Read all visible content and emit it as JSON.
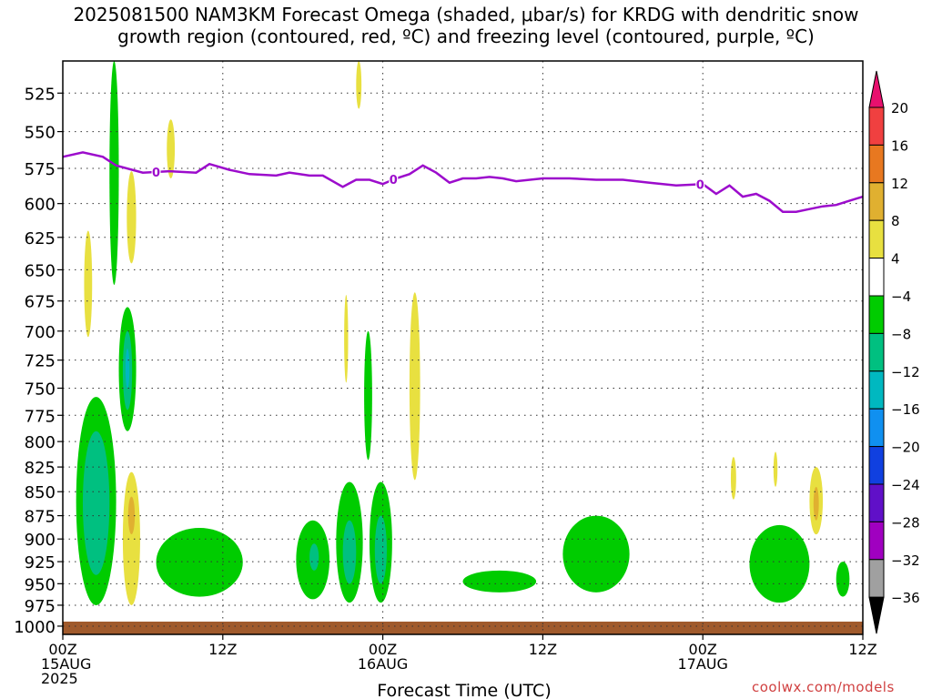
{
  "title_line1": "2025081500 NAM3KM Forecast Omega (shaded, μbar/s) for KRDG with dendritic snow",
  "title_line2": "growth region (contoured, red, ºC) and freezing level (contoured, purple, ºC)",
  "watermark": "coolwx.com/models",
  "colors": {
    "freezing_line": "#9c0ccc",
    "ground": "#a05a2c",
    "grid": "#555555"
  },
  "chart_data": {
    "type": "heatmap",
    "xlabel": "Forecast Time (UTC)",
    "ylabel": "",
    "x_range_hours": [
      0,
      60
    ],
    "y_range_hPa": [
      1010,
      505
    ],
    "y_scale": "log-pressure",
    "y_ticks": [
      525,
      550,
      575,
      600,
      625,
      650,
      675,
      700,
      725,
      750,
      775,
      800,
      825,
      850,
      875,
      900,
      925,
      950,
      975,
      1000
    ],
    "x_ticks": [
      {
        "hour": 0,
        "lines": [
          "00Z",
          "15AUG",
          "2025"
        ]
      },
      {
        "hour": 12,
        "lines": [
          "12Z"
        ]
      },
      {
        "hour": 24,
        "lines": [
          "00Z",
          "16AUG"
        ]
      },
      {
        "hour": 36,
        "lines": [
          "12Z"
        ]
      },
      {
        "hour": 48,
        "lines": [
          "00Z",
          "17AUG"
        ]
      },
      {
        "hour": 60,
        "lines": [
          "12Z"
        ]
      }
    ],
    "grid": true,
    "colorbar": {
      "labels": [
        "20",
        "16",
        "12",
        "8",
        "4",
        "−4",
        "−8",
        "−12",
        "−16",
        "−20",
        "−24",
        "−28",
        "−32",
        "−36"
      ],
      "bins": [
        "#e8106e",
        "#f04040",
        "#e87820",
        "#e0b030",
        "#e8e040",
        "#ffffff",
        "#00cc00",
        "#00c080",
        "#00b8c0",
        "#1090f0",
        "#1040e0",
        "#6010c8",
        "#a000c0",
        "#a0a0a0"
      ]
    },
    "freezing_level": {
      "label": "0",
      "label_hours": [
        7.0,
        24.8,
        47.8
      ],
      "hours": [
        0,
        1.5,
        3,
        4,
        6,
        8,
        10,
        11,
        12.5,
        14,
        16,
        17,
        18.5,
        19.5,
        21,
        22,
        23,
        24,
        25,
        26,
        27,
        28,
        29,
        30,
        31,
        32,
        33,
        34,
        36,
        38,
        40,
        42,
        44,
        46,
        48,
        49,
        50,
        51,
        52,
        53,
        54,
        55,
        56,
        57,
        58,
        59,
        60
      ],
      "pressure_hPa": [
        567,
        564,
        567,
        573,
        578,
        577,
        578,
        572,
        576,
        579,
        580,
        578,
        580,
        580,
        588,
        583,
        583,
        586,
        582,
        579,
        573,
        578,
        585,
        582,
        582,
        581,
        582,
        584,
        582,
        582,
        583,
        583,
        585,
        587,
        586,
        593,
        587,
        595,
        593,
        598,
        606,
        606,
        604,
        602,
        601,
        598,
        595
      ]
    },
    "ground_pressure_hPa": 1000,
    "omega_regions": [
      {
        "bin": "−4",
        "hour_range": [
          3.5,
          4.2
        ],
        "p_range": [
          505,
          662
        ]
      },
      {
        "bin": "−4",
        "hour_range": [
          1.0,
          4.0
        ],
        "p_range": [
          758,
          975
        ]
      },
      {
        "bin": "−4",
        "hour_range": [
          4.2,
          5.5
        ],
        "p_range": [
          680,
          790
        ]
      },
      {
        "bin": "−4",
        "hour_range": [
          7.0,
          13.5
        ],
        "p_range": [
          888,
          965
        ]
      },
      {
        "bin": "−4",
        "hour_range": [
          17.5,
          20.0
        ],
        "p_range": [
          880,
          968
        ]
      },
      {
        "bin": "−4",
        "hour_range": [
          20.5,
          22.5
        ],
        "p_range": [
          840,
          972
        ]
      },
      {
        "bin": "−4",
        "hour_range": [
          22.6,
          23.2
        ],
        "p_range": [
          700,
          818
        ]
      },
      {
        "bin": "−4",
        "hour_range": [
          23.0,
          24.7
        ],
        "p_range": [
          840,
          972
        ]
      },
      {
        "bin": "−4",
        "hour_range": [
          30.0,
          35.5
        ],
        "p_range": [
          935,
          960
        ]
      },
      {
        "bin": "−4",
        "hour_range": [
          37.5,
          42.5
        ],
        "p_range": [
          875,
          960
        ]
      },
      {
        "bin": "−4",
        "hour_range": [
          51.5,
          56.0
        ],
        "p_range": [
          885,
          972
        ]
      },
      {
        "bin": "−4",
        "hour_range": [
          58.0,
          59.0
        ],
        "p_range": [
          925,
          965
        ]
      },
      {
        "bin": "−8",
        "hour_range": [
          1.5,
          3.5
        ],
        "p_range": [
          790,
          940
        ]
      },
      {
        "bin": "−8",
        "hour_range": [
          4.5,
          5.2
        ],
        "p_range": [
          700,
          770
        ]
      },
      {
        "bin": "−8",
        "hour_range": [
          21.0,
          22.0
        ],
        "p_range": [
          880,
          950
        ]
      },
      {
        "bin": "−8",
        "hour_range": [
          23.4,
          24.3
        ],
        "p_range": [
          875,
          950
        ]
      },
      {
        "bin": "−8",
        "hour_range": [
          18.5,
          19.2
        ],
        "p_range": [
          905,
          935
        ]
      },
      {
        "bin": "−12",
        "hour_range": [
          4.7,
          5.0
        ],
        "p_range": [
          715,
          750
        ]
      },
      {
        "bin": "4",
        "hour_range": [
          1.6,
          2.2
        ],
        "p_range": [
          620,
          705
        ]
      },
      {
        "bin": "4",
        "hour_range": [
          4.8,
          5.5
        ],
        "p_range": [
          577,
          645
        ]
      },
      {
        "bin": "4",
        "hour_range": [
          7.8,
          8.4
        ],
        "p_range": [
          542,
          582
        ]
      },
      {
        "bin": "4",
        "hour_range": [
          4.5,
          5.8
        ],
        "p_range": [
          830,
          975
        ]
      },
      {
        "bin": "4",
        "hour_range": [
          22.0,
          22.4
        ],
        "p_range": [
          505,
          535
        ]
      },
      {
        "bin": "4",
        "hour_range": [
          21.1,
          21.4
        ],
        "p_range": [
          670,
          745
        ]
      },
      {
        "bin": "4",
        "hour_range": [
          26.0,
          26.8
        ],
        "p_range": [
          668,
          838
        ]
      },
      {
        "bin": "4",
        "hour_range": [
          50.1,
          50.5
        ],
        "p_range": [
          815,
          858
        ]
      },
      {
        "bin": "4",
        "hour_range": [
          53.3,
          53.6
        ],
        "p_range": [
          810,
          845
        ]
      },
      {
        "bin": "4",
        "hour_range": [
          56.0,
          57.0
        ],
        "p_range": [
          825,
          895
        ]
      },
      {
        "bin": "8",
        "hour_range": [
          4.9,
          5.4
        ],
        "p_range": [
          855,
          895
        ]
      },
      {
        "bin": "8",
        "hour_range": [
          56.3,
          56.7
        ],
        "p_range": [
          845,
          880
        ]
      }
    ]
  }
}
